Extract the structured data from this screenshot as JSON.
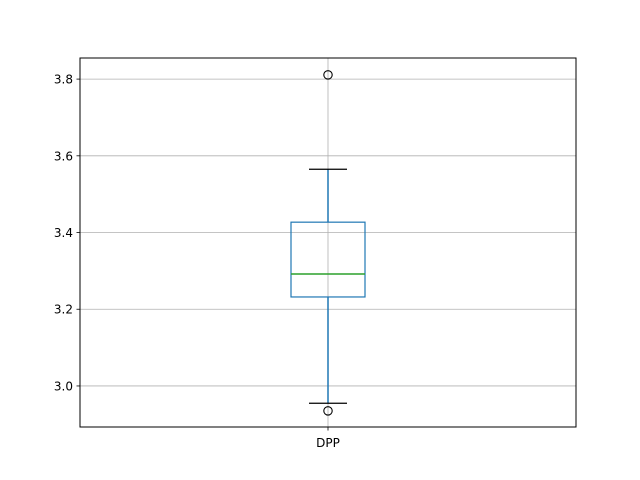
{
  "chart_data": {
    "type": "box",
    "categories": [
      "DPP"
    ],
    "boxes": [
      {
        "name": "DPP",
        "whisker_low": 2.955,
        "q1": 3.232,
        "median": 3.292,
        "q3": 3.427,
        "whisker_high": 3.565,
        "outliers": [
          3.811,
          2.935
        ]
      }
    ],
    "ylim": [
      2.893,
      3.855
    ],
    "yticks": [
      3.0,
      3.2,
      3.4,
      3.6,
      3.8
    ],
    "ytick_labels": [
      "3.0",
      "3.2",
      "3.4",
      "3.6",
      "3.8"
    ],
    "grid": true,
    "colors": {
      "box": "#1f77b4",
      "median": "#2ca02c",
      "whisker_cap": "#000000",
      "grid": "#b0b0b0",
      "outlier": "#000000"
    }
  }
}
